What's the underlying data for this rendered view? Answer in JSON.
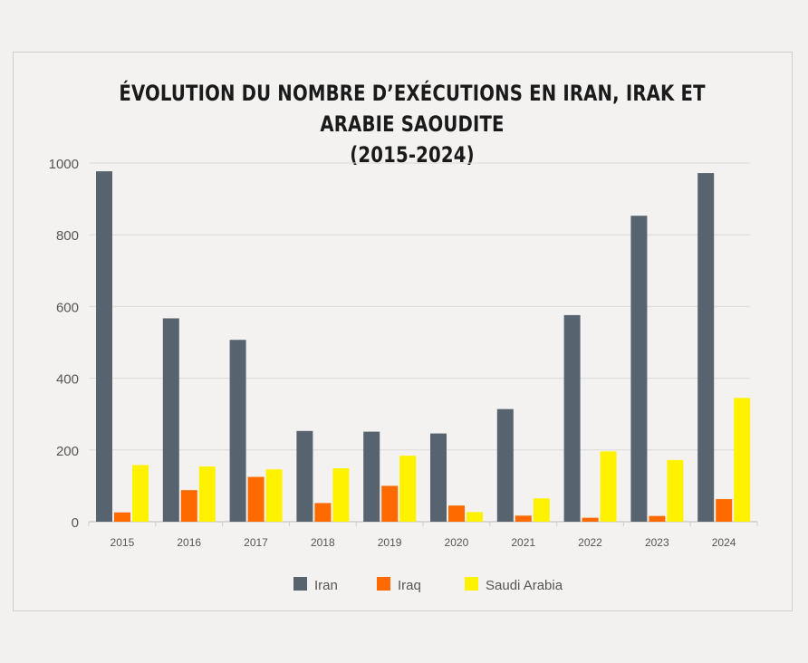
{
  "title_line1": "ÉVOLUTION DU NOMBRE D’EXÉCUTIONS EN IRAN, IRAK ET ARABIE SAOUDITE",
  "title_line2": "(2015-2024)",
  "chart_data": {
    "type": "bar",
    "title": "ÉVOLUTION DU NOMBRE D’EXÉCUTIONS EN IRAN, IRAK ET ARABIE SAOUDITE (2015-2024)",
    "categories": [
      "2015",
      "2016",
      "2017",
      "2018",
      "2019",
      "2020",
      "2021",
      "2022",
      "2023",
      "2024"
    ],
    "series": [
      {
        "name": "Iran",
        "color": "#57636e",
        "values": [
          977,
          567,
          507,
          253,
          251,
          246,
          314,
          576,
          853,
          972
        ]
      },
      {
        "name": "Iraq",
        "color": "#ff6a00",
        "values": [
          26,
          88,
          125,
          52,
          100,
          45,
          17,
          11,
          16,
          63
        ]
      },
      {
        "name": "Saudi Arabia",
        "color": "#fff200",
        "values": [
          158,
          154,
          146,
          149,
          184,
          27,
          65,
          196,
          172,
          345
        ]
      }
    ],
    "yticks": [
      0,
      200,
      400,
      600,
      800,
      1000
    ],
    "ylim": [
      0,
      1000
    ],
    "xlabel": "",
    "ylabel": "",
    "grid": true,
    "legend_position": "bottom"
  }
}
